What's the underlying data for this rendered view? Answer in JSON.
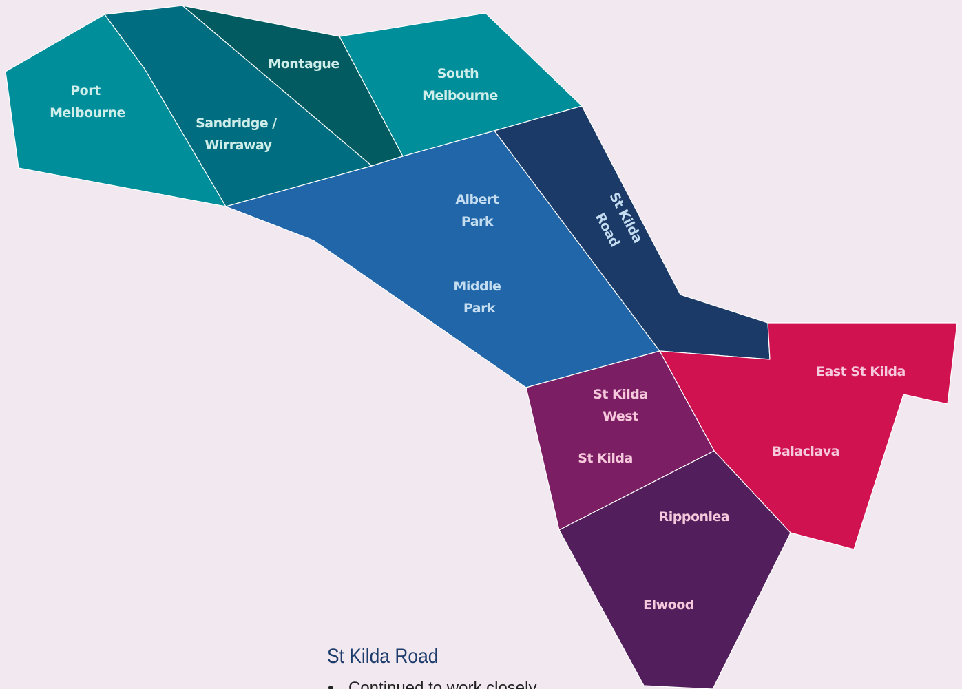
{
  "colors": {
    "background": "#f2e8f0",
    "border": "#ffffff",
    "teal_light": "#008e9b",
    "teal_mid": "#006e80",
    "teal_dark": "#025b60",
    "blue": "#2066a8",
    "navy": "#1b3a67",
    "crimson": "#d11251",
    "plum": "#7b1e63",
    "aubergine": "#521e5c",
    "label_teal": "#cfeeea",
    "label_blue": "#c4dcf0",
    "label_pink": "#f6c8dc"
  },
  "map": {
    "regions": [
      {
        "name": "Port Melbourne",
        "lines": [
          "Port",
          "Melbourne"
        ]
      },
      {
        "name": "Sandridge / Wirraway",
        "lines": [
          "Sandridge /",
          "Wirraway"
        ]
      },
      {
        "name": "Montague",
        "lines": [
          "Montague"
        ]
      },
      {
        "name": "South Melbourne",
        "lines": [
          "South",
          "Melbourne"
        ]
      },
      {
        "name": "Albert Park / Middle Park",
        "lines": [
          "Albert",
          "Park",
          "Middle",
          "Park"
        ]
      },
      {
        "name": "St Kilda Road",
        "lines": [
          "St Kilda",
          "Road"
        ]
      },
      {
        "name": "East St Kilda / Balaclava",
        "lines": [
          "East St Kilda",
          "Balaclava"
        ]
      },
      {
        "name": "St Kilda West / St Kilda",
        "lines": [
          "St Kilda",
          "West",
          "St Kilda"
        ]
      },
      {
        "name": "Ripponlea / Elwood",
        "lines": [
          "Ripponlea",
          "Elwood"
        ]
      }
    ]
  },
  "section": {
    "heading": "St Kilda Road",
    "bullets": [
      "Continued to work closely"
    ]
  }
}
